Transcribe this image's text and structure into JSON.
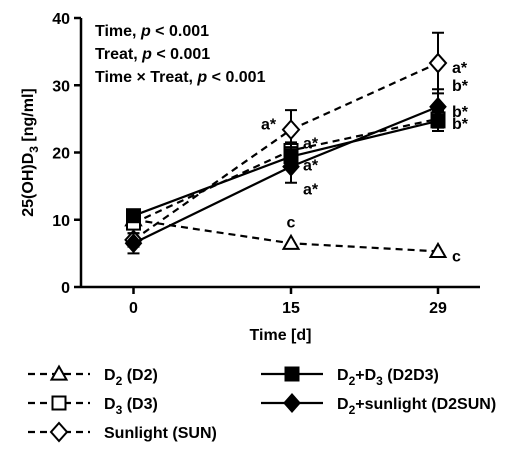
{
  "chart_data": {
    "type": "line",
    "xlabel": "Time [d]",
    "ylabel_parts": {
      "base": "25(OH)D",
      "sub": "3",
      "unit": " [ng/ml]"
    },
    "x": [
      0,
      15,
      29
    ],
    "x_ticks": [
      "0",
      "15",
      "29"
    ],
    "xlim": [
      -5,
      33
    ],
    "ylim": [
      0,
      40
    ],
    "y_ticks": [
      "0",
      "10",
      "20",
      "30",
      "40"
    ],
    "grid": false,
    "legend_position": "bottom",
    "stats": [
      {
        "prefix": "Time, ",
        "p": "p",
        "suffix": " < 0.001"
      },
      {
        "prefix": "Treat, ",
        "p": "p",
        "suffix": " < 0.001"
      },
      {
        "prefix": "Time × Treat, ",
        "p": "p",
        "suffix": " < 0.001"
      }
    ],
    "series": [
      {
        "key": "D2",
        "legend_main": "D",
        "legend_sub": "2",
        "legend_rest": " (D2)",
        "marker": "triangle-open",
        "dash": true,
        "values": [
          10.0,
          6.5,
          5.3
        ],
        "errors": [
          0.5,
          0.6,
          0.5
        ],
        "labels": [
          "",
          "c",
          "c"
        ]
      },
      {
        "key": "D3",
        "legend_main": "D",
        "legend_sub": "3",
        "legend_rest": " (D3)",
        "marker": "square-open",
        "dash": true,
        "values": [
          9.5,
          20.3,
          25.0
        ],
        "errors": [
          0.6,
          1.2,
          1.3
        ],
        "labels": [
          "",
          "a*",
          "b*"
        ]
      },
      {
        "key": "SUN",
        "legend_main": "Sunlight (SUN)",
        "legend_sub": "",
        "legend_rest": "",
        "marker": "diamond-open",
        "dash": true,
        "values": [
          7.0,
          23.4,
          33.3
        ],
        "errors": [
          1.0,
          2.9,
          4.5
        ],
        "labels": [
          "",
          "a*",
          "a*"
        ]
      },
      {
        "key": "D2D3",
        "legend_main": "D",
        "legend_sub": "2",
        "legend_rest": "+D",
        "legend_sub2": "3",
        "legend_rest2": " (D2D3)",
        "marker": "square-filled",
        "dash": false,
        "values": [
          10.6,
          19.4,
          24.7
        ],
        "errors": [
          0.7,
          1.4,
          1.5
        ],
        "labels": [
          "",
          "a*",
          "b*"
        ]
      },
      {
        "key": "D2SUN",
        "legend_main": "D",
        "legend_sub": "2",
        "legend_rest": "+sunlight (D2SUN)",
        "marker": "diamond-filled",
        "dash": false,
        "values": [
          6.5,
          17.9,
          26.8
        ],
        "errors": [
          1.5,
          2.4,
          2.6
        ],
        "labels": [
          "",
          "a*",
          "b*"
        ]
      }
    ]
  }
}
